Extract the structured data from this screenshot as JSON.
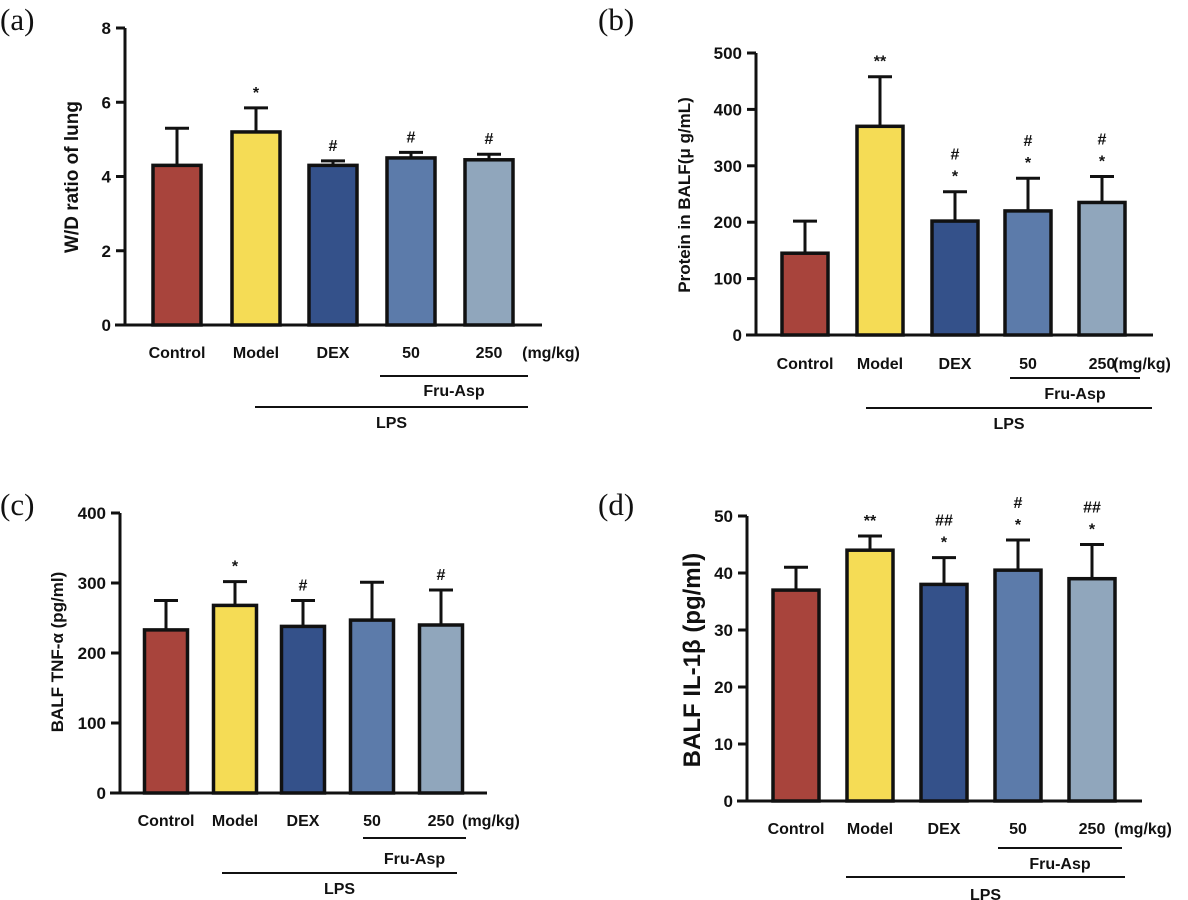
{
  "colors": [
    "#A8443C",
    "#F5DC55",
    "#34518A",
    "#5C7BAA",
    "#90A6BC"
  ],
  "chart_data": [
    {
      "type": "bar",
      "panel_label": "(a)",
      "ylabel": "W/D ratio of lung",
      "ylim": [
        0,
        8
      ],
      "yticks": [
        0,
        2,
        4,
        6,
        8
      ],
      "categories": [
        "Control",
        "Model",
        "DEX",
        "50",
        "250"
      ],
      "unit_label": "(mg/kg)",
      "group_label": "Fru-Asp",
      "treatment_label": "LPS",
      "values": [
        4.3,
        5.2,
        4.3,
        4.5,
        4.45
      ],
      "errors": [
        1.0,
        0.65,
        0.12,
        0.15,
        0.15
      ],
      "annotations": [
        [],
        [
          "*"
        ],
        [
          "#"
        ],
        [
          "#"
        ],
        [
          "#"
        ]
      ]
    },
    {
      "type": "bar",
      "panel_label": "(b)",
      "ylabel": "Protein in BALF(μ g/mL)",
      "ylim": [
        0,
        500
      ],
      "yticks": [
        0,
        100,
        200,
        300,
        400,
        500
      ],
      "categories": [
        "Control",
        "Model",
        "DEX",
        "50",
        "250"
      ],
      "unit_label": "(mg/kg)",
      "group_label": "Fru-Asp",
      "treatment_label": "LPS",
      "values": [
        145,
        370,
        202,
        220,
        235
      ],
      "errors": [
        57,
        88,
        52,
        58,
        46
      ],
      "annotations": [
        [],
        [
          "**"
        ],
        [
          "#",
          "*"
        ],
        [
          "#",
          "*"
        ],
        [
          "#",
          "*"
        ]
      ]
    },
    {
      "type": "bar",
      "panel_label": "(c)",
      "ylabel": "BALF TNF-α (pg/ml)",
      "ylim": [
        0,
        400
      ],
      "yticks": [
        0,
        100,
        200,
        300,
        400
      ],
      "categories": [
        "Control",
        "Model",
        "DEX",
        "50",
        "250"
      ],
      "unit_label": "(mg/kg)",
      "group_label": "Fru-Asp",
      "treatment_label": "LPS",
      "values": [
        233,
        268,
        238,
        247,
        240
      ],
      "errors": [
        42,
        34,
        37,
        54,
        50
      ],
      "annotations": [
        [],
        [
          "*"
        ],
        [
          "#"
        ],
        [],
        [
          "#"
        ]
      ]
    },
    {
      "type": "bar",
      "panel_label": "(d)",
      "ylabel": "BALF IL-1β (pg/ml)",
      "ylim": [
        0,
        50
      ],
      "yticks": [
        0,
        10,
        20,
        30,
        40,
        50
      ],
      "categories": [
        "Control",
        "Model",
        "DEX",
        "50",
        "250"
      ],
      "unit_label": "(mg/kg)",
      "group_label": "Fru-Asp",
      "treatment_label": "LPS",
      "values": [
        37,
        44,
        38,
        40.5,
        39
      ],
      "errors": [
        4,
        2.5,
        4.7,
        5.3,
        6
      ],
      "annotations": [
        [],
        [
          "**"
        ],
        [
          "##",
          "*"
        ],
        [
          "#",
          "*"
        ],
        [
          "##",
          "*"
        ]
      ]
    }
  ]
}
